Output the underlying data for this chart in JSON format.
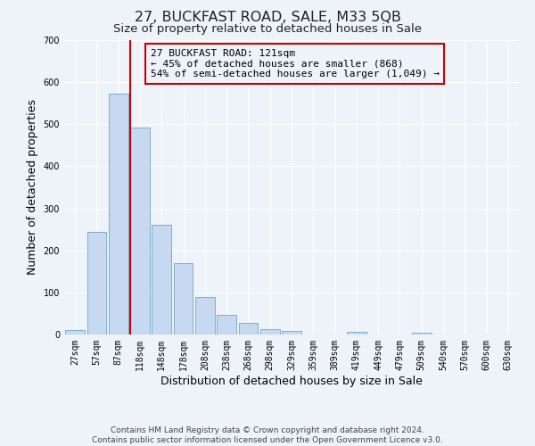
{
  "title": "27, BUCKFAST ROAD, SALE, M33 5QB",
  "subtitle": "Size of property relative to detached houses in Sale",
  "xlabel": "Distribution of detached houses by size in Sale",
  "ylabel": "Number of detached properties",
  "bin_labels": [
    "27sqm",
    "57sqm",
    "87sqm",
    "118sqm",
    "148sqm",
    "178sqm",
    "208sqm",
    "238sqm",
    "268sqm",
    "298sqm",
    "329sqm",
    "359sqm",
    "389sqm",
    "419sqm",
    "449sqm",
    "479sqm",
    "509sqm",
    "540sqm",
    "570sqm",
    "600sqm",
    "630sqm"
  ],
  "bar_heights": [
    10,
    245,
    572,
    492,
    260,
    170,
    90,
    47,
    27,
    12,
    8,
    0,
    0,
    7,
    0,
    0,
    5,
    0,
    0,
    0,
    0
  ],
  "bar_color": "#c6d9f0",
  "bar_edgecolor": "#7bafd4",
  "vline_color": "#cc0000",
  "annotation_text": "27 BUCKFAST ROAD: 121sqm\n← 45% of detached houses are smaller (868)\n54% of semi-detached houses are larger (1,049) →",
  "annotation_box_edgecolor": "#cc0000",
  "ylim": [
    0,
    700
  ],
  "yticks": [
    0,
    100,
    200,
    300,
    400,
    500,
    600,
    700
  ],
  "footer_line1": "Contains HM Land Registry data © Crown copyright and database right 2024.",
  "footer_line2": "Contains public sector information licensed under the Open Government Licence v3.0.",
  "background_color": "#eef2f9",
  "grid_color": "#ffffff",
  "title_fontsize": 11.5,
  "subtitle_fontsize": 9.5,
  "axis_label_fontsize": 9,
  "tick_fontsize": 7,
  "annotation_fontsize": 8,
  "footer_fontsize": 6.5
}
